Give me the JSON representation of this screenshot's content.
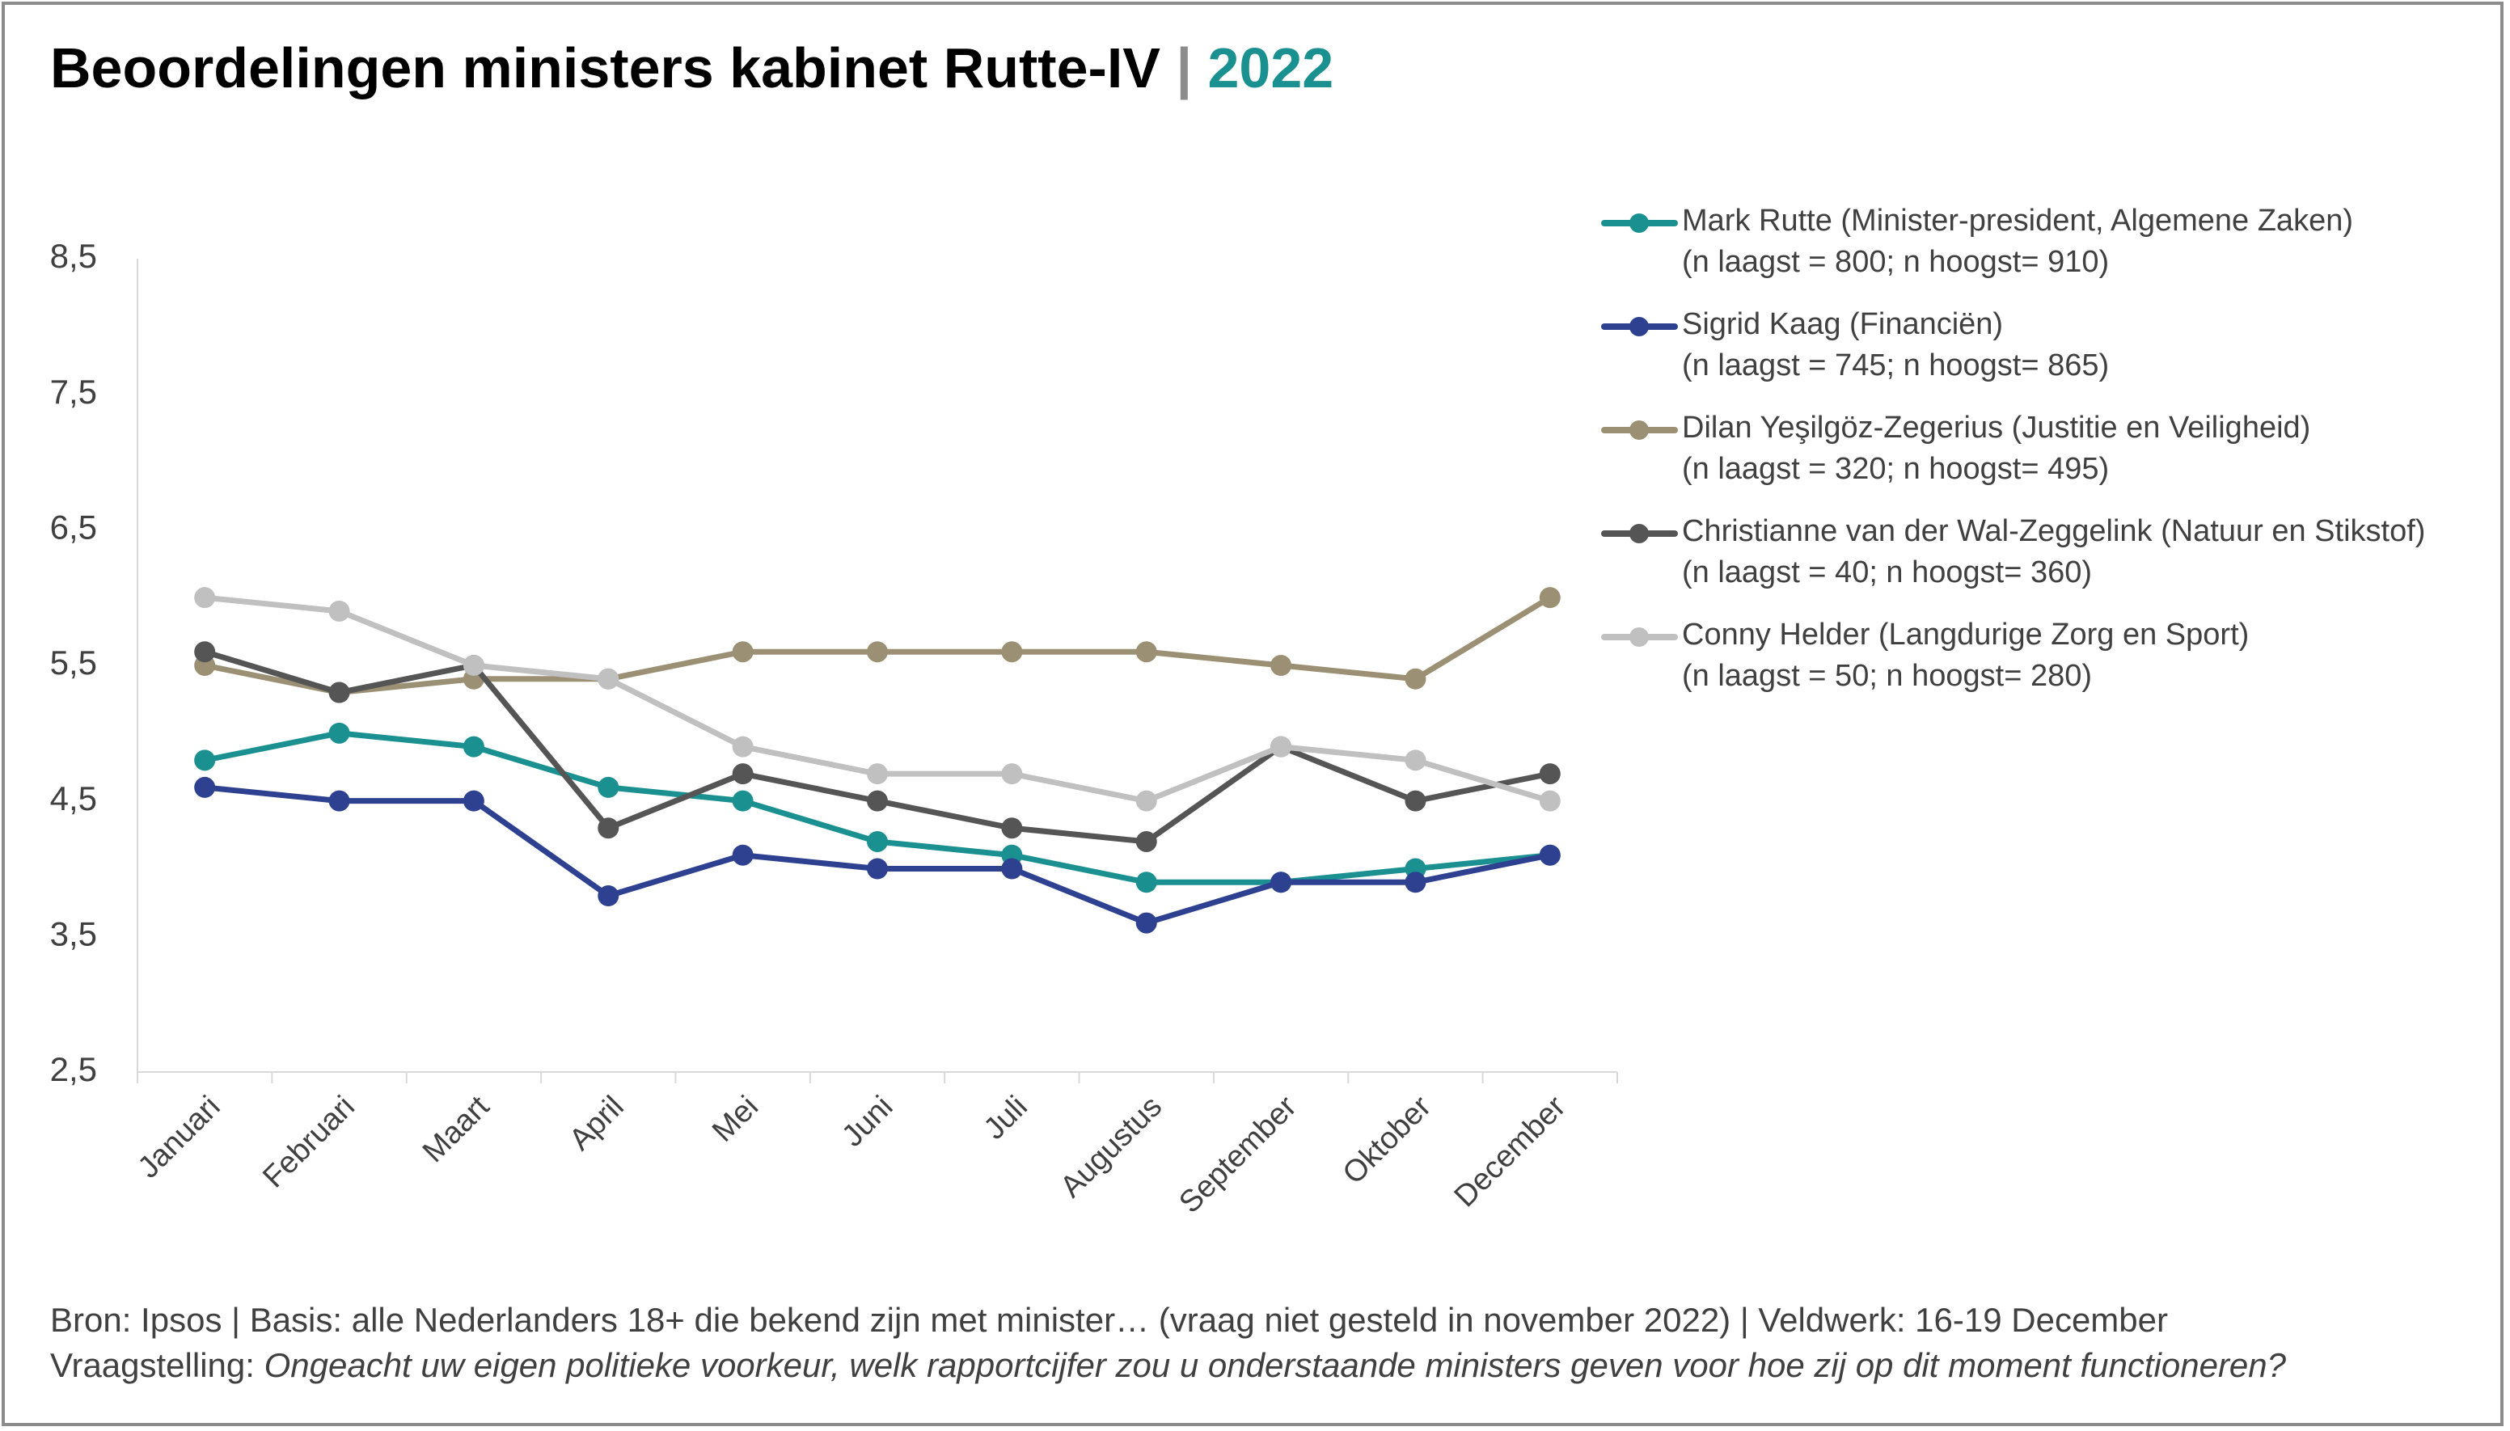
{
  "title": {
    "main": "Beoordelingen ministers kabinet Rutte-IV",
    "separator": "|",
    "year": "2022"
  },
  "colors": {
    "accent": "#1a9190",
    "axis": "#d9d9d9",
    "text": "#404040"
  },
  "chart_data": {
    "type": "line",
    "title": "Beoordelingen ministers kabinet Rutte-IV | 2022",
    "xlabel": "",
    "ylabel": "",
    "ylim": [
      2.5,
      8.5
    ],
    "yticks": [
      "8,5",
      "7,5",
      "6,5",
      "5,5",
      "4,5",
      "3,5",
      "2,5"
    ],
    "ytick_values": [
      8.5,
      7.5,
      6.5,
      5.5,
      4.5,
      3.5,
      2.5
    ],
    "grid": false,
    "legend_position": "right",
    "categories": [
      "Januari",
      "Februari",
      "Maart",
      "April",
      "Mei",
      "Juni",
      "Juli",
      "Augustus",
      "September",
      "Oktober",
      "December"
    ],
    "series": [
      {
        "name": "Mark Rutte (Minister-president, Algemene Zaken)",
        "sub": "(n laagst = 800; n hoogst= 910)",
        "color": "#1a9190",
        "values": [
          4.8,
          5.0,
          4.9,
          4.6,
          4.5,
          4.2,
          4.1,
          3.9,
          3.9,
          4.0,
          4.1
        ]
      },
      {
        "name": "Sigrid Kaag (Financiën)",
        "sub": "(n laagst = 745; n hoogst= 865)",
        "color": "#2e4191",
        "values": [
          4.6,
          4.5,
          4.5,
          3.8,
          4.1,
          4.0,
          4.0,
          3.6,
          3.9,
          3.9,
          4.1
        ]
      },
      {
        "name": "Dilan Yeşilgöz-Zegerius (Justitie en Veiligheid)",
        "sub": "(n laagst = 320; n hoogst= 495)",
        "color": "#9c9074",
        "values": [
          5.5,
          5.3,
          5.4,
          5.4,
          5.6,
          5.6,
          5.6,
          5.6,
          5.5,
          5.4,
          6.0
        ]
      },
      {
        "name": "Christianne van der Wal-Zeggelink (Natuur en Stikstof)",
        "sub": "(n laagst = 40; n hoogst= 360)",
        "color": "#555555",
        "values": [
          5.6,
          5.3,
          5.5,
          4.3,
          4.7,
          4.5,
          4.3,
          4.2,
          4.9,
          4.5,
          4.7
        ]
      },
      {
        "name": "Conny Helder (Langdurige Zorg en Sport)",
        "sub": "(n laagst = 50; n hoogst= 280)",
        "color": "#c0c0c0",
        "values": [
          6.0,
          5.9,
          5.5,
          5.4,
          4.9,
          4.7,
          4.7,
          4.5,
          4.9,
          4.8,
          4.5
        ]
      }
    ]
  },
  "footer": {
    "source": "Bron: Ipsos | Basis: alle Nederlanders 18+ die bekend zijn met minister… (vraag niet gesteld in november 2022) | Veldwerk: 16-19 December",
    "question_label": "Vraagstelling: ",
    "question": "Ongeacht uw eigen politieke voorkeur, welk rapportcijfer zou u onderstaande ministers geven voor hoe zij op dit moment functioneren?"
  }
}
